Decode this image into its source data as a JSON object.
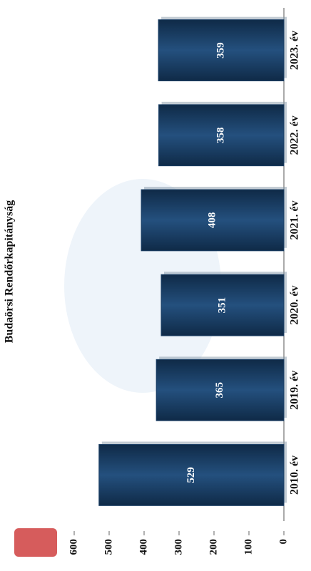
{
  "chart_data": {
    "type": "bar",
    "title": "Budaörsi Rendőrkapitányság",
    "categories": [
      "2010. év",
      "2019. év",
      "2020. év",
      "2021. év",
      "2022. év",
      "2023. év"
    ],
    "values": [
      529,
      365,
      351,
      408,
      358,
      359
    ],
    "color": "#1b3f66",
    "ylim": [
      0,
      600
    ],
    "yticks": [
      0,
      100,
      200,
      300,
      400,
      500,
      600
    ],
    "grid": false
  }
}
